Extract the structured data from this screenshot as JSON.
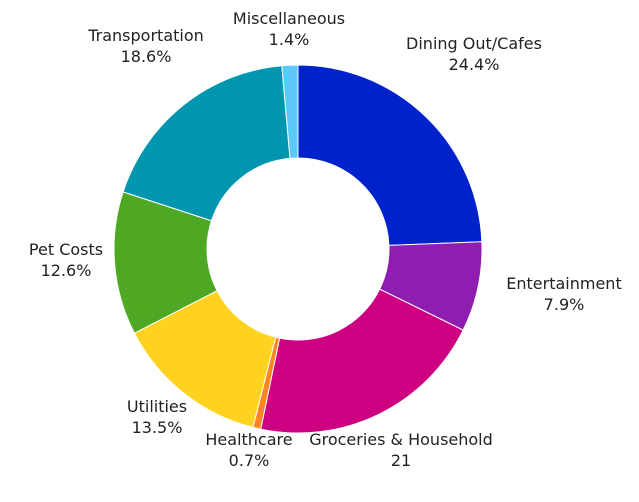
{
  "chart_data": {
    "type": "pie",
    "style": "donut",
    "title": "",
    "slices": [
      {
        "label": "Dining Out/Cafes",
        "value": 24.4,
        "display": "24.4%",
        "color": "#0022CC"
      },
      {
        "label": "Entertainment",
        "value": 7.9,
        "display": "7.9%",
        "color": "#8E1DB0"
      },
      {
        "label": "Groceries & Household",
        "value": 21,
        "display": "21",
        "color": "#CC0080"
      },
      {
        "label": "Healthcare",
        "value": 0.7,
        "display": "0.7%",
        "color": "#FF8522"
      },
      {
        "label": "Utilities",
        "value": 13.5,
        "display": "13.5%",
        "color": "#FFD21F"
      },
      {
        "label": "Pet Costs",
        "value": 12.6,
        "display": "12.6%",
        "color": "#4EA823"
      },
      {
        "label": "Transportation",
        "value": 18.6,
        "display": "18.6%",
        "color": "#0096B0"
      },
      {
        "label": "Miscellaneous",
        "value": 1.4,
        "display": "1.4%",
        "color": "#5CC8F8"
      }
    ]
  }
}
